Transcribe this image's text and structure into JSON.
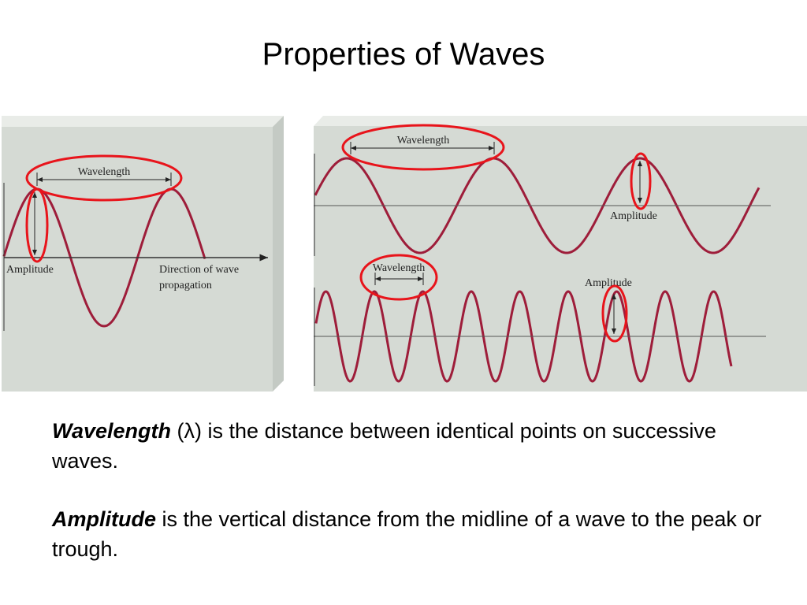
{
  "title": "Properties of Waves",
  "figure": {
    "left": {
      "wavelength_label": "Wavelength",
      "amplitude_label": "Amplitude",
      "direction_label": [
        "Direction of wave",
        "propagation"
      ]
    },
    "right_top": {
      "wavelength_label": "Wavelength",
      "amplitude_label": "Amplitude"
    },
    "right_bottom": {
      "wavelength_label": "Wavelength",
      "amplitude_label": "Amplitude"
    }
  },
  "definitions": [
    {
      "term": "Wavelength",
      "text": "(λ) is the distance between identical points on successive waves."
    },
    {
      "term": "Amplitude",
      "text": "is the vertical distance from the midline of a wave to the peak or trough."
    }
  ]
}
